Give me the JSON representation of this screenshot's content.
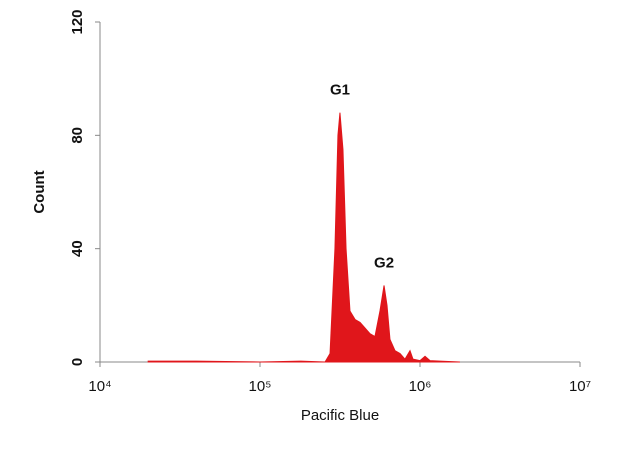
{
  "chart_data": {
    "type": "area",
    "x_label": "Pacific Blue",
    "y_label": "Count",
    "xscale": "log",
    "color": "#e0161b",
    "x": [
      20000,
      40000,
      100000,
      180000,
      255000,
      274000,
      294000,
      307000,
      316000,
      330000,
      345000,
      365000,
      393000,
      422000,
      453000,
      487000,
      523000,
      562000,
      596000,
      622000,
      649000,
      698000,
      750000,
      806000,
      866000,
      904000,
      1000000,
      1075000,
      1155000,
      1334000,
      1778000
    ],
    "values": [
      0.3,
      0.3,
      0,
      0.3,
      0,
      3,
      40,
      80,
      88,
      75,
      40,
      18,
      15,
      14,
      12,
      10,
      9,
      18,
      27,
      20,
      8,
      4,
      3,
      1,
      4,
      1,
      0.5,
      2,
      0.5,
      0.3,
      0
    ],
    "xlim": [
      10000,
      10000000
    ],
    "xticks": [
      {
        "value": 10000,
        "label": "10⁴"
      },
      {
        "value": 100000,
        "label": "10⁵"
      },
      {
        "value": 1000000,
        "label": "10⁶"
      },
      {
        "value": 10000000,
        "label": "10⁷"
      }
    ],
    "ylim": [
      0,
      120
    ],
    "yticks": [
      0,
      40,
      80,
      120
    ],
    "annotations": [
      {
        "text": "G1",
        "x": 316000,
        "y": 88
      },
      {
        "text": "G2",
        "x": 596000,
        "y": 27
      }
    ]
  }
}
